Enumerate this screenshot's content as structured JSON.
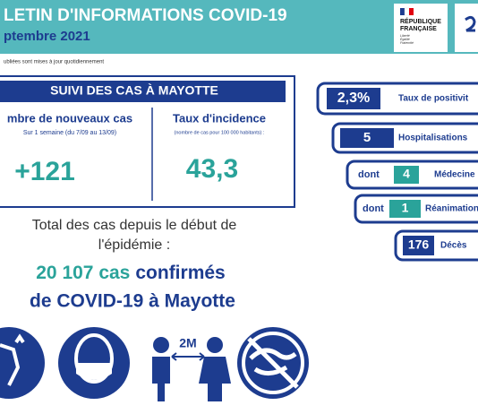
{
  "header": {
    "title": "LETIN D'INFORMATIONS COVID-19",
    "date": "ptembre 2021",
    "note": "ubliées sont mises à jour quotidiennement",
    "logo": {
      "name": [
        "RÉPUBLIQUE",
        "FRANÇAISE"
      ],
      "motto": [
        "Liberté",
        "Égalité",
        "Fraternité"
      ]
    }
  },
  "box": {
    "title": "SUIVI DES CAS À MAYOTTE",
    "left": {
      "label": "mbre de nouveaux cas",
      "sub": "Sur 1 semaine (du 7/09 au 13/09)",
      "value": "+121"
    },
    "right": {
      "label": "Taux d'incidence",
      "sub": "(nombre de cas pour 100 000 habitants) :",
      "value": "43,3"
    }
  },
  "total": {
    "lines": [
      "Total des cas depuis le début de",
      "l'épidémie :"
    ],
    "count": "20 107 cas",
    "confirmed": "confirmés",
    "rest": "de COVID-19 à Mayotte"
  },
  "indicators": [
    {
      "value": "2,3%",
      "label": "Taux de positivit"
    },
    {
      "value": "5",
      "label": "Hospitalisations"
    },
    {
      "prefix": "dont",
      "value": "4",
      "label": "Médecine"
    },
    {
      "prefix": "dont",
      "value": "1",
      "label": "Réanimation"
    },
    {
      "value": "176",
      "label": "Décès"
    }
  ],
  "icons": {
    "distance": "2M"
  }
}
